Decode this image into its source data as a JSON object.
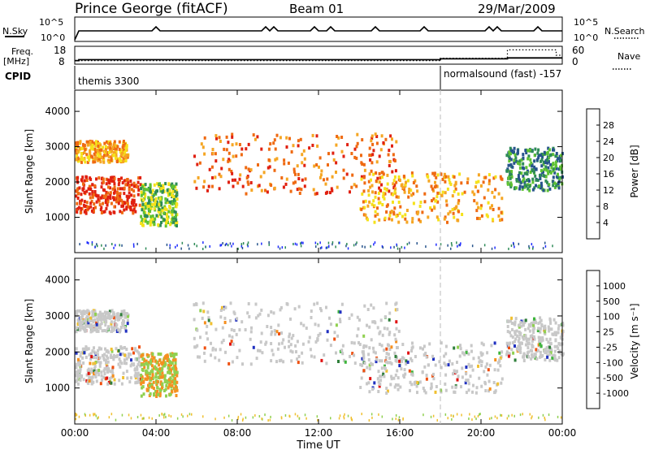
{
  "header": {
    "station": "Prince George (fitACF)",
    "beam": "Beam 01",
    "date": "29/Mar/2009"
  },
  "strip_labels": {
    "nsky": "N.Sky",
    "nsearch": "N.Search",
    "freq_line1": "Freq.",
    "freq_line2": "[MHz]",
    "nave": "Nave",
    "cpid": "CPID",
    "nsky_ticks": [
      "10^5",
      "10^0"
    ],
    "nsearch_ticks": [
      "10^5",
      "10^0"
    ],
    "freq_ticks": [
      "18",
      "8"
    ],
    "nave_ticks": [
      "60",
      "0"
    ]
  },
  "cpid_modes": [
    {
      "label": "themis 3300",
      "start_hour": 0
    },
    {
      "label": "normalsound (fast) -157",
      "start_hour": 18
    }
  ],
  "panels": {
    "power": {
      "ylabel": "Slant Range [km]",
      "cbar_label": "Power [dB]",
      "cbar_ticks": [
        "4",
        "8",
        "12",
        "16",
        "20",
        "24",
        "28"
      ],
      "cbar_colors": [
        "#1e2cff",
        "#27548c",
        "#2e8b57",
        "#5fc233",
        "#f5e21b",
        "#f5a623",
        "#ef6a12",
        "#e02010"
      ]
    },
    "velocity": {
      "ylabel": "Slant Range [km]",
      "cbar_label": "Velocity [m s⁻¹]",
      "cbar_ticks": [
        "1000",
        "500",
        "100",
        "25",
        "-25",
        "-100",
        "-500",
        "-1000"
      ],
      "cbar_colors": [
        "#2030c0",
        "#2f7f3a",
        "#3eb53c",
        "#90d050",
        "#c8c8c8",
        "#f0c030",
        "#f59020",
        "#ef5010",
        "#e01010"
      ]
    }
  },
  "chart_data": {
    "type": "heatmap",
    "xlabel": "Time UT",
    "x_ticks": [
      "00:00",
      "04:00",
      "08:00",
      "12:00",
      "16:00",
      "20:00",
      "00:00"
    ],
    "xlim_hours": [
      0,
      24
    ],
    "ylim_km": [
      0,
      4600
    ],
    "y_ticks": [
      1000,
      2000,
      3000,
      4000
    ],
    "grid": false,
    "dashed_marker_hour": 18,
    "freq_mhz": [
      {
        "hour": 0,
        "value": 10.0
      },
      {
        "hour": 0.2,
        "value": 10.5
      },
      {
        "hour": 18,
        "value": 11.0
      },
      {
        "hour": 21.3,
        "value": 11.5
      }
    ],
    "nave": [
      {
        "hour": 0,
        "value": 12
      },
      {
        "hour": 18,
        "value": 20
      },
      {
        "hour": 21.3,
        "value": 48
      },
      {
        "hour": 23.7,
        "value": 30
      }
    ],
    "echo_regions": [
      {
        "name": "lower band 00-03 UT",
        "hour_start": 0,
        "hour_end": 3.2,
        "range_km": [
          1150,
          2200
        ],
        "power_db": 26,
        "velocity": "near-zero"
      },
      {
        "name": "upper band 00-03 UT",
        "hour_start": 0,
        "hour_end": 2.6,
        "range_km": [
          2600,
          3200
        ],
        "power_db": 20,
        "velocity": "near-zero"
      },
      {
        "name": "patch 03-05 UT",
        "hour_start": 3.2,
        "hour_end": 5.0,
        "range_km": [
          800,
          2000
        ],
        "power_db": 12,
        "velocity": "-100 to 100"
      },
      {
        "name": "main arc 06-16 UT",
        "hour_start": 5.8,
        "hour_end": 16.0,
        "range_km": [
          1700,
          3400
        ],
        "power_db": 22,
        "velocity": "near-zero"
      },
      {
        "name": "band 14-21 UT",
        "hour_start": 14.0,
        "hour_end": 21.0,
        "range_km": [
          900,
          2300
        ],
        "power_db": 20,
        "velocity": "near-zero"
      },
      {
        "name": "late echoes 21-24 UT",
        "hour_start": 21.2,
        "hour_end": 24.0,
        "range_km": [
          1800,
          3000
        ],
        "power_db": 6,
        "velocity": "near-zero"
      }
    ]
  }
}
